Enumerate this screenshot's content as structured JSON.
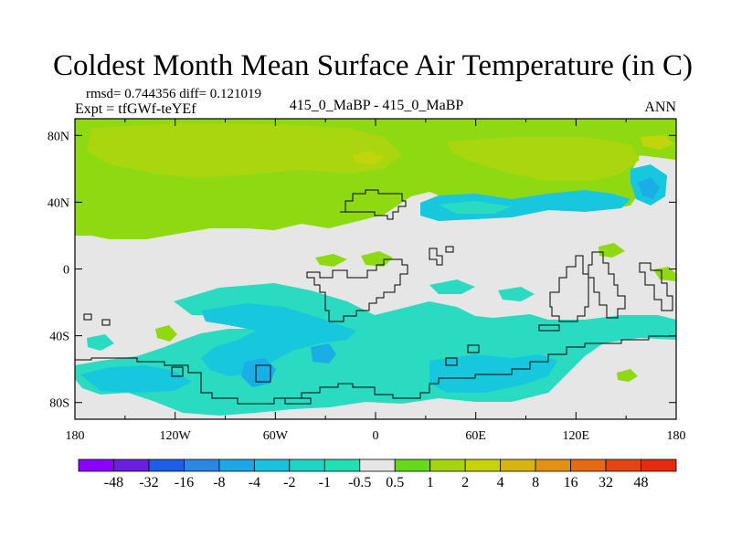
{
  "chart_data": {
    "type": "heatmap",
    "title": "Coldest Month Mean Surface Air Temperature (in C)",
    "stats_line": "rmsd= 0.744356 diff= 0.121019",
    "experiment_line": "Expt = tfGWf-teYEf",
    "comparison_label": "415_0_MaBP - 415_0_MaBP",
    "period_label": "ANN",
    "xaxis_ticks": [
      "180",
      "120W",
      "60W",
      "0",
      "60E",
      "120E",
      "180"
    ],
    "yaxis_ticks": [
      "80N",
      "40N",
      "0",
      "40S",
      "80S"
    ],
    "xlim": [
      -180,
      180
    ],
    "ylim": [
      -90,
      90
    ],
    "colorbar": {
      "labels": [
        "-48",
        "-32",
        "-16",
        "-8",
        "-4",
        "-2",
        "-1",
        "-0.5",
        "0.5",
        "1",
        "2",
        "4",
        "8",
        "16",
        "32",
        "48"
      ],
      "colors": [
        "#8b00ff",
        "#6a1fe0",
        "#1e5de6",
        "#2a87e4",
        "#1fa6e8",
        "#19c1df",
        "#1ed5c5",
        "#22e0b2",
        "#e6e6e6",
        "#66d91c",
        "#a6d40c",
        "#c8d20a",
        "#d8b410",
        "#e39111",
        "#e66a10",
        "#e64412",
        "#e42a0f"
      ]
    },
    "colors": {
      "background_field": "#e6e6e6",
      "positive_small": "#8fd912",
      "positive_mid": "#a9d60e",
      "positive_high": "#c2d40c",
      "negative_small": "#2adbc2",
      "negative_mid": "#17c7dd",
      "negative_high": "#19aee6",
      "coast": "#000000"
    }
  }
}
